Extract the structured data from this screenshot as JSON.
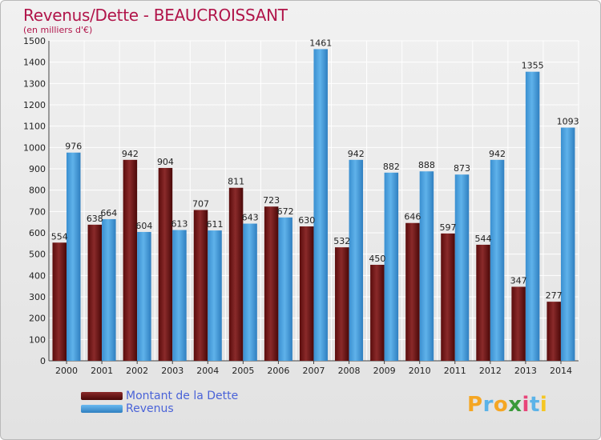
{
  "header": {
    "title": "Revenus/Dette - BEAUCROISSANT",
    "subtitle": "(en milliers d'€)"
  },
  "legend": {
    "items": [
      {
        "label": "Montant de la Dette",
        "color": "#7a1a1a"
      },
      {
        "label": "Revenus",
        "color": "#4aa3e3"
      }
    ]
  },
  "logo": {
    "letters": [
      "P",
      "r",
      "o",
      "x",
      "i",
      "t",
      "i"
    ],
    "colors": [
      "#f5a623",
      "#5bb3e8",
      "#f5a623",
      "#3a9a3a",
      "#e8457a",
      "#5bb3e8",
      "#f5c623"
    ]
  },
  "chart_data": {
    "type": "bar",
    "title": "Revenus/Dette - BEAUCROISSANT",
    "subtitle": "(en milliers d'€)",
    "categories": [
      "2000",
      "2001",
      "2002",
      "2003",
      "2004",
      "2005",
      "2006",
      "2007",
      "2008",
      "2009",
      "2010",
      "2011",
      "2012",
      "2013",
      "2014"
    ],
    "series": [
      {
        "name": "Montant de la Dette",
        "values": [
          554,
          638,
          942,
          904,
          707,
          811,
          723,
          630,
          532,
          450,
          646,
          597,
          544,
          347,
          277
        ],
        "color": "#7a1a1a"
      },
      {
        "name": "Revenus",
        "values": [
          976,
          664,
          604,
          613,
          611,
          643,
          672,
          1461,
          942,
          882,
          888,
          873,
          942,
          1355,
          1093
        ],
        "color": "#4aa3e3"
      }
    ],
    "ylim": [
      0,
      1500
    ],
    "yticks": [
      0,
      100,
      200,
      300,
      400,
      500,
      600,
      700,
      800,
      900,
      1000,
      1100,
      1200,
      1300,
      1400,
      1500
    ],
    "grid": true,
    "legend_position": "bottom-left"
  }
}
